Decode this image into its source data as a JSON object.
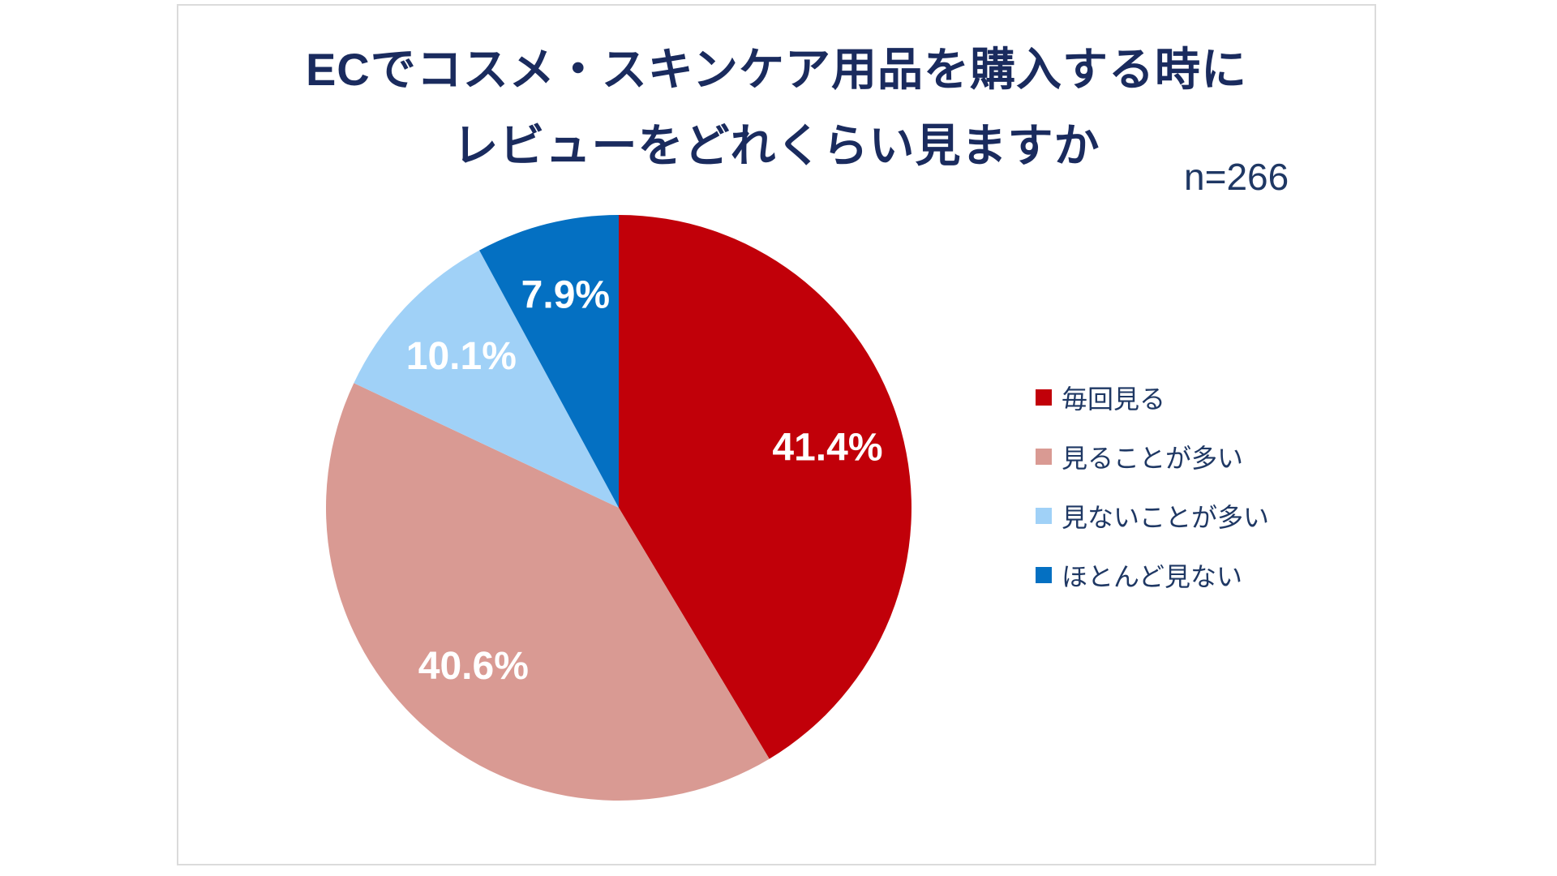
{
  "chart_data": {
    "type": "pie",
    "title_line1": "ECでコスメ・スキンケア用品を購入する時に",
    "title_line2": "レビューをどれくらい見ますか",
    "sample_label": "n=266",
    "start_angle_deg": 0,
    "direction": "clockwise",
    "legend_position": "right",
    "slice_label_color": "#ffffff",
    "slices": [
      {
        "label": "毎回見る",
        "value": 41.4,
        "display": "41.4%",
        "color": "#c10009"
      },
      {
        "label": "見ることが多い",
        "value": 40.6,
        "display": "40.6%",
        "color": "#d99a93"
      },
      {
        "label": "見ないことが多い",
        "value": 10.1,
        "display": "10.1%",
        "color": "#a0d1f7"
      },
      {
        "label": "ほとんど見ない",
        "value": 7.9,
        "display": "7.9%",
        "color": "#0470c2"
      }
    ]
  },
  "colors": {
    "title_text": "#1a2b5e",
    "body_text": "#1f3864",
    "panel_border": "#dbdbdb",
    "panel_background": "#ffffff"
  }
}
